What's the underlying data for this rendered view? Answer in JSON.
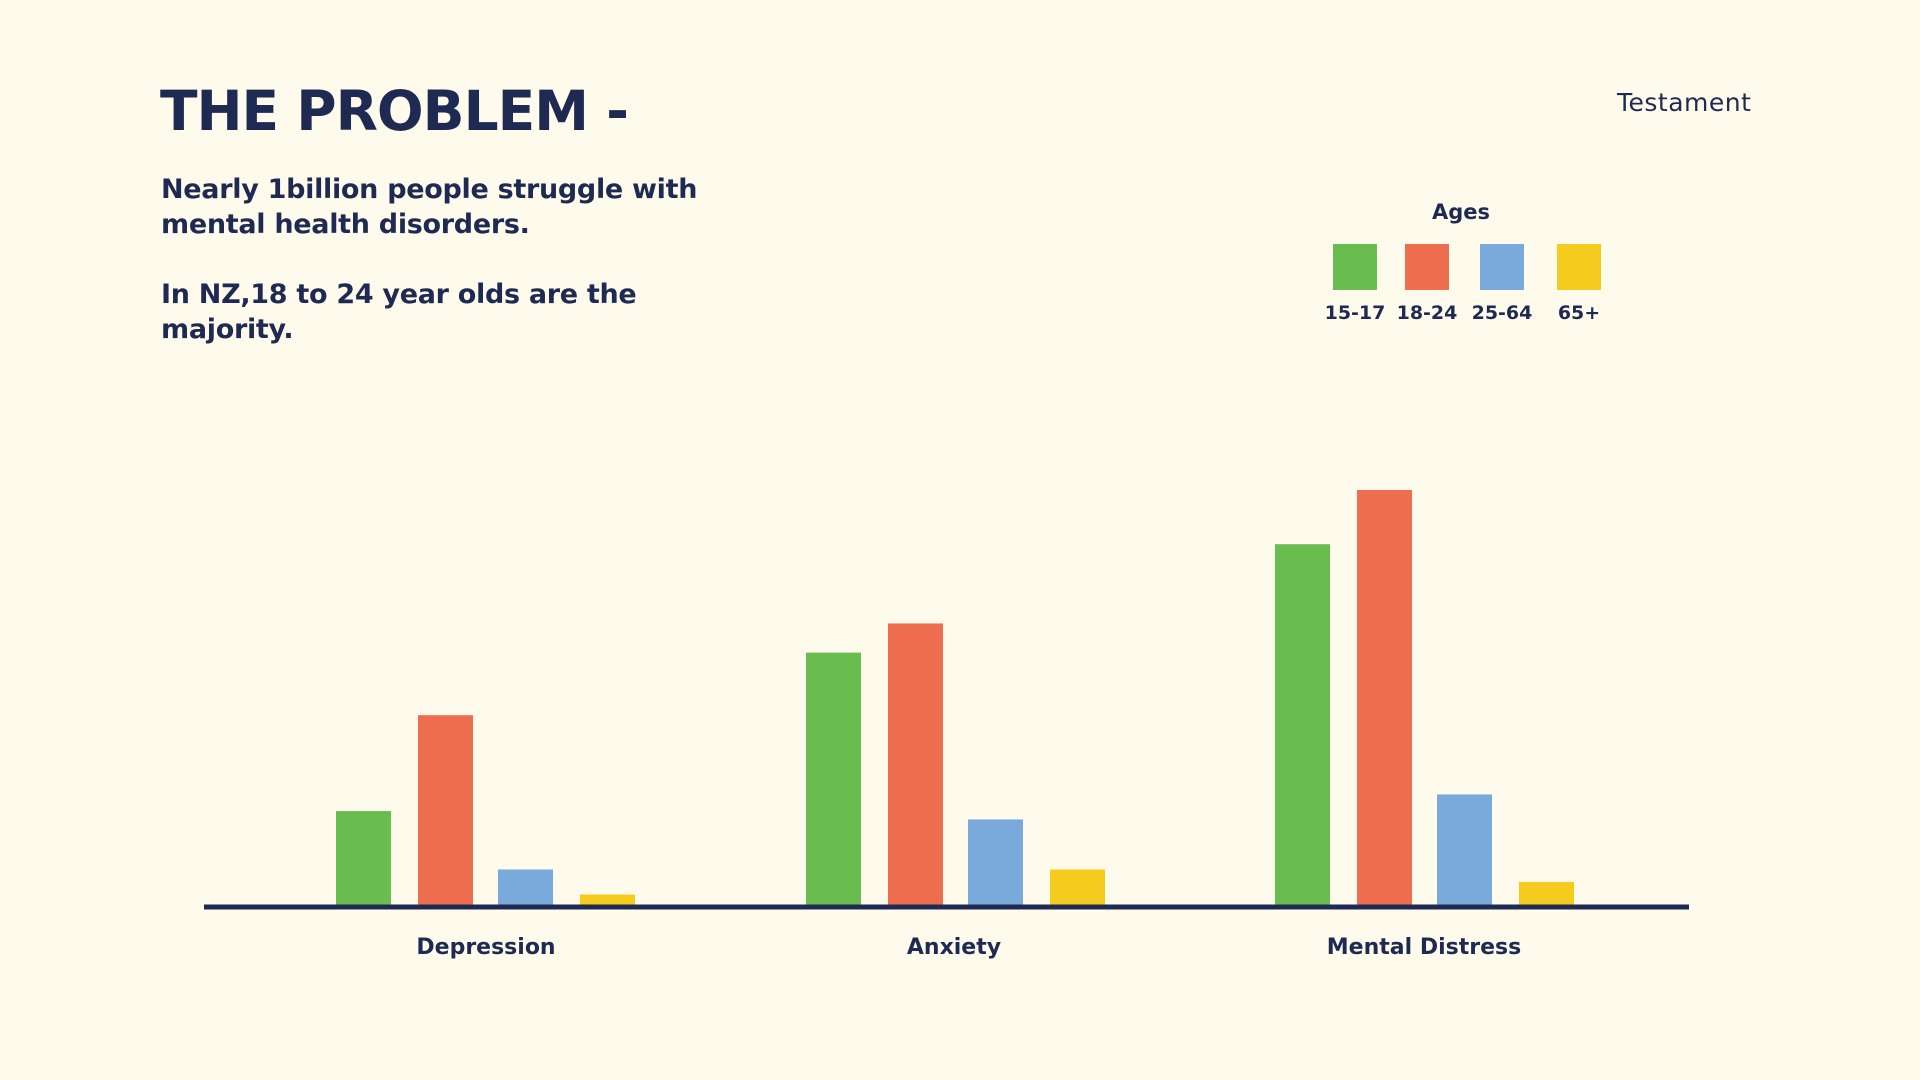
{
  "slide": {
    "title": "THE PROBLEM -",
    "intro_line_1": "Nearly 1billion people struggle with mental health disorders.",
    "intro_line_2": "In NZ,18 to 24 year olds are the majority.",
    "brand": "Testament"
  },
  "colors": {
    "background": "#FEFBEC",
    "text": "#1F2A52",
    "axis": "#1F2A52"
  },
  "chart_data": {
    "type": "bar",
    "categories": [
      "Depression",
      "Anxiety",
      "Mental Distress"
    ],
    "legend_title": "Ages",
    "legend_position": "top-right",
    "grid": false,
    "ylim": [
      0,
      100
    ],
    "series": [
      {
        "name": "15-17",
        "color": "#69BD4F",
        "values": [
          23,
          61,
          87
        ]
      },
      {
        "name": "18-24",
        "color": "#EE6E4F",
        "values": [
          46,
          68,
          100
        ]
      },
      {
        "name": "25-64",
        "color": "#7AAADC",
        "values": [
          9,
          21,
          27
        ]
      },
      {
        "name": "65+",
        "color": "#F5CB1E",
        "values": [
          3,
          9,
          6
        ]
      }
    ]
  }
}
